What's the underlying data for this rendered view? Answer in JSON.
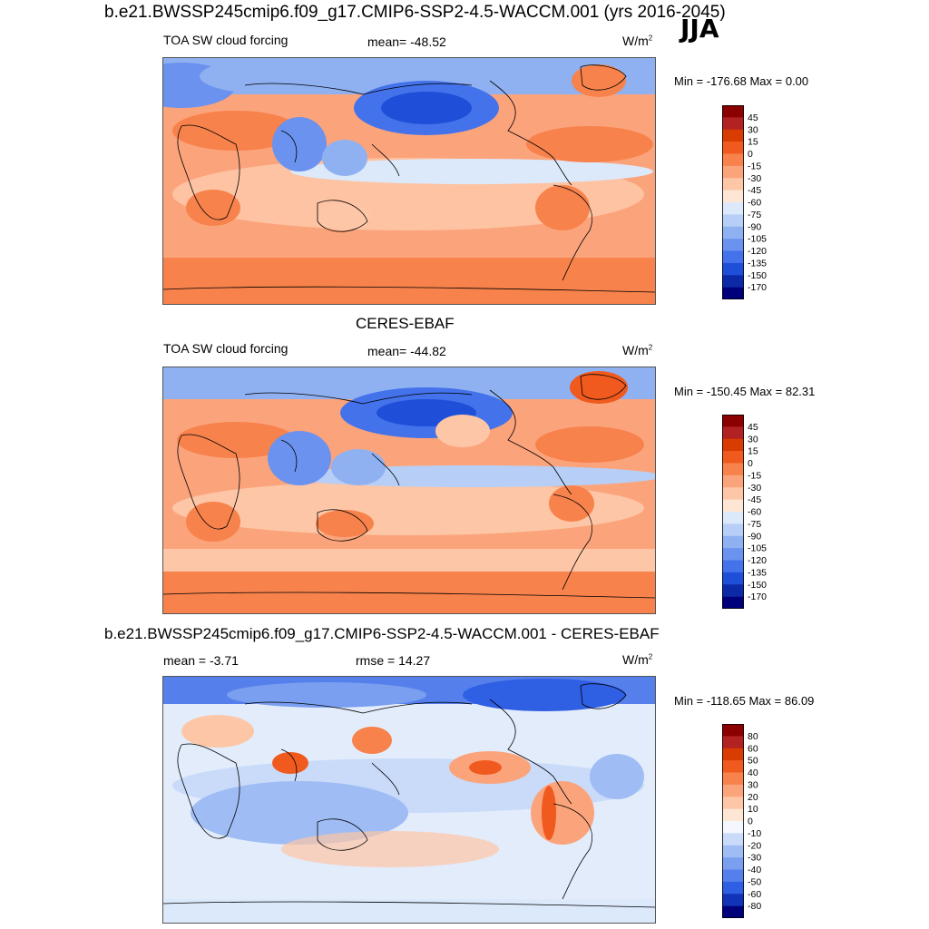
{
  "figure": {
    "case_title": "b.e21.BWSSP245cmip6.f09_g17.CMIP6-SSP2-4.5-WACCM.001 (yrs 2016-2045)",
    "season": "JJA",
    "obs_title": "CERES-EBAF",
    "diff_title": "b.e21.BWSSP245cmip6.f09_g17.CMIP6-SSP2-4.5-WACCM.001 - CERES-EBAF"
  },
  "panels": [
    {
      "id": "model",
      "variable": "TOA SW cloud forcing",
      "stat_text": "mean= -48.52",
      "units_base": "W/m",
      "units_sup": "2",
      "minmax": "Min = -176.68 Max =   0.00"
    },
    {
      "id": "obs",
      "variable": "TOA SW cloud forcing",
      "stat_text": "mean= -44.82",
      "units_base": "W/m",
      "units_sup": "2",
      "minmax": "Min = -150.45 Max =  82.31"
    },
    {
      "id": "diff",
      "mean_text": "mean =  -3.71",
      "rmse_text": "rmse =  14.27",
      "units_base": "W/m",
      "units_sup": "2",
      "minmax": "Min = -118.65 Max =  86.09"
    }
  ],
  "colorbars": {
    "field": {
      "labels": [
        "45",
        "30",
        "15",
        "0",
        "-15",
        "-30",
        "-45",
        "-60",
        "-75",
        "-90",
        "-105",
        "-120",
        "-135",
        "-150",
        "-170"
      ],
      "colors": [
        "#8b0000",
        "#b22222",
        "#d93c00",
        "#f05a1e",
        "#f7824c",
        "#fba47c",
        "#fdc6a6",
        "#fee6d4",
        "#dce9fb",
        "#b7cff7",
        "#8fb1f2",
        "#6a92ee",
        "#4472ea",
        "#1f4fd9",
        "#0c2aa8",
        "#00007a"
      ]
    },
    "diff": {
      "labels": [
        "80",
        "60",
        "50",
        "40",
        "30",
        "20",
        "10",
        "0",
        "-10",
        "-20",
        "-30",
        "-40",
        "-50",
        "-60",
        "-80"
      ],
      "colors": [
        "#8b0000",
        "#b22222",
        "#d93c00",
        "#f05a1e",
        "#f7824c",
        "#fba47c",
        "#fdc6a6",
        "#fee6d4",
        "#f4f7fd",
        "#c9dbf9",
        "#9fbdf4",
        "#7a9ff0",
        "#5580ec",
        "#2f5fe3",
        "#1233b8",
        "#00007a"
      ]
    }
  }
}
